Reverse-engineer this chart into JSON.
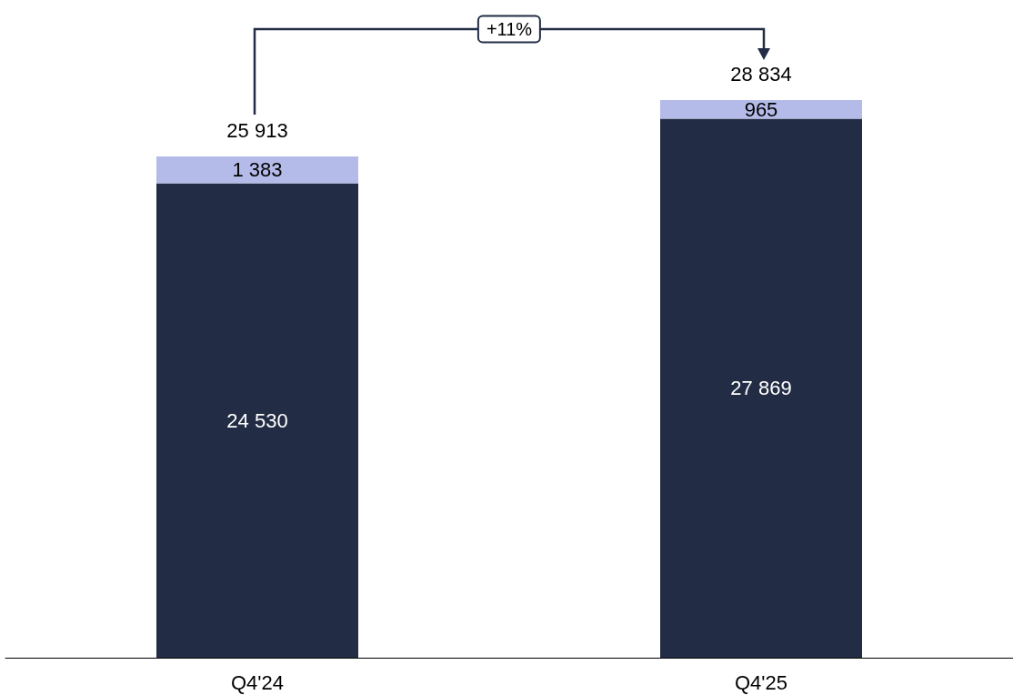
{
  "chart_data": {
    "type": "bar",
    "stacked": true,
    "data_labels": true,
    "categories": [
      "Q4'24",
      "Q4'25"
    ],
    "series": [
      {
        "color": "#222d45",
        "values": [
          24530,
          27869
        ]
      },
      {
        "color": "#b4bbe8",
        "values": [
          1383,
          965
        ]
      }
    ],
    "totals": [
      "25 913",
      "28 834"
    ],
    "annotations": [
      "+11%"
    ]
  }
}
